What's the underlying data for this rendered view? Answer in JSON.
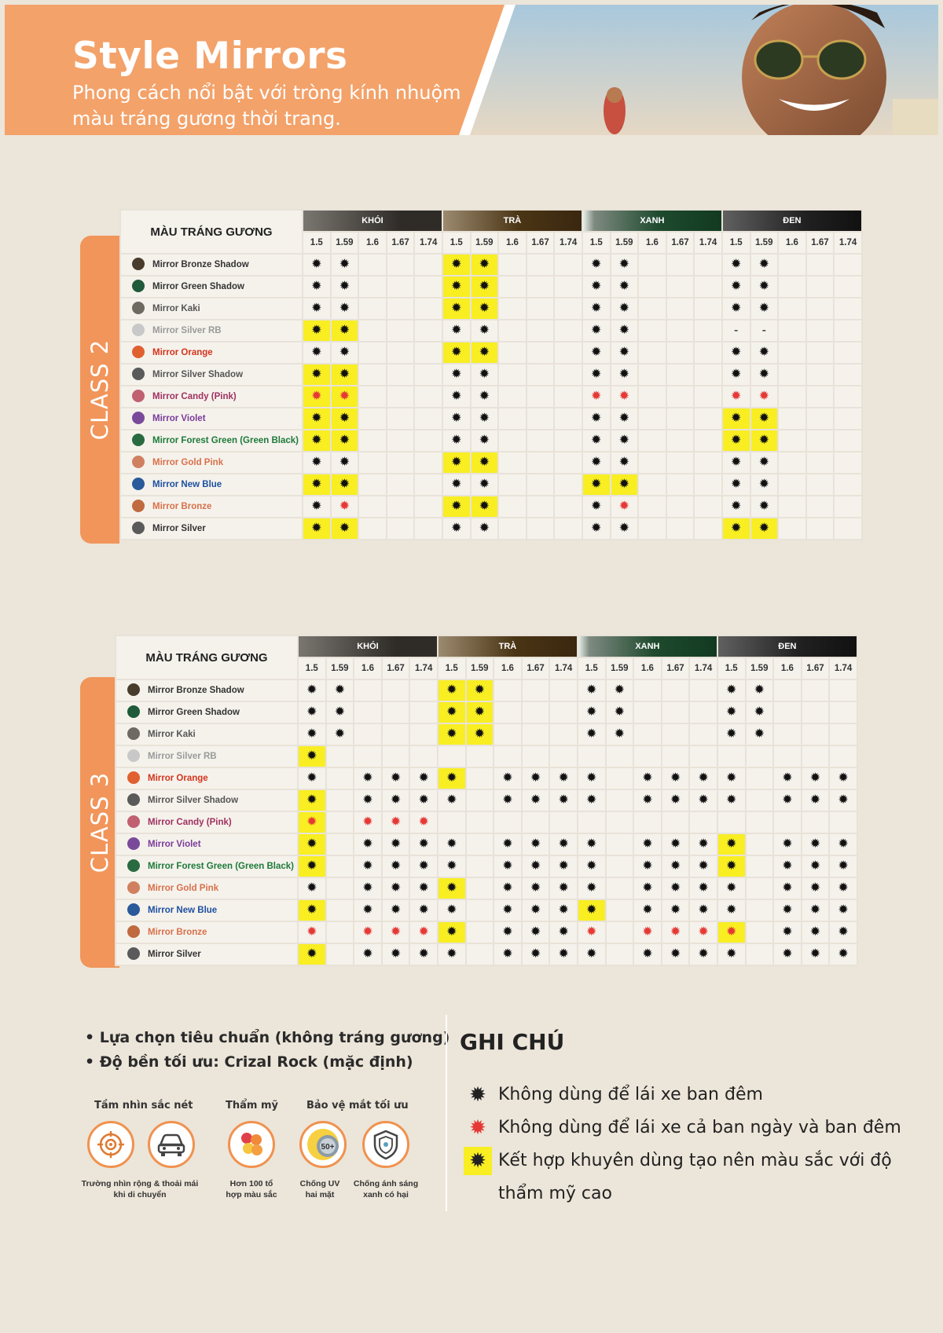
{
  "header": {
    "title": "Style Mirrors",
    "subtitle": "Phong cách nổi bật với tròng kính nhuộm màu tráng gương thời trang."
  },
  "table_header": {
    "corner": "MÀU TRÁNG GƯƠNG",
    "groups": [
      "KHÓI",
      "TRÀ",
      "XANH",
      "ĐEN"
    ],
    "indices": [
      "1.5",
      "1.59",
      "1.6",
      "1.67",
      "1.74"
    ]
  },
  "colors": {
    "orange_accent": "#f1955a",
    "highlight_yellow": "#f8ee22",
    "warning_red": "#e53935",
    "cell_bg": "#f5f2ec",
    "page_bg": "#ece5d9"
  },
  "legend_codes": {
    "s": "sun icon",
    "S": "sun icon highlighted",
    "r": "red sun icon",
    "R": "red sun icon highlighted",
    "-": "dash",
    "": "empty"
  },
  "class2": {
    "label": "CLASS 2",
    "rows": [
      {
        "name": "Mirror Bronze Shadow",
        "color": "#333333",
        "dot": "#4a3c2c",
        "cells": [
          "s",
          "s",
          "",
          "",
          "",
          "S",
          "S",
          "",
          "",
          "",
          "s",
          "s",
          "",
          "",
          "",
          "s",
          "s",
          "",
          "",
          ""
        ]
      },
      {
        "name": "Mirror Green Shadow",
        "color": "#333333",
        "dot": "#1f5a3a",
        "cells": [
          "s",
          "s",
          "",
          "",
          "",
          "S",
          "S",
          "",
          "",
          "",
          "s",
          "s",
          "",
          "",
          "",
          "s",
          "s",
          "",
          "",
          ""
        ]
      },
      {
        "name": "Mirror Kaki",
        "color": "#555555",
        "dot": "#6e6a62",
        "cells": [
          "s",
          "s",
          "",
          "",
          "",
          "S",
          "S",
          "",
          "",
          "",
          "s",
          "s",
          "",
          "",
          "",
          "s",
          "s",
          "",
          "",
          ""
        ]
      },
      {
        "name": "Mirror Silver RB",
        "color": "#9a9a9a",
        "dot": "#c8c8c8",
        "cells": [
          "S",
          "S",
          "",
          "",
          "",
          "s",
          "s",
          "",
          "",
          "",
          "s",
          "s",
          "",
          "",
          "",
          "-",
          "-",
          "",
          "",
          ""
        ]
      },
      {
        "name": "Mirror Orange",
        "color": "#d4341c",
        "dot": "#e06030",
        "cells": [
          "s",
          "s",
          "",
          "",
          "",
          "S",
          "S",
          "",
          "",
          "",
          "s",
          "s",
          "",
          "",
          "",
          "s",
          "s",
          "",
          "",
          ""
        ]
      },
      {
        "name": "Mirror Silver Shadow",
        "color": "#555555",
        "dot": "#5a5a5a",
        "cells": [
          "S",
          "S",
          "",
          "",
          "",
          "s",
          "s",
          "",
          "",
          "",
          "s",
          "s",
          "",
          "",
          "",
          "s",
          "s",
          "",
          "",
          ""
        ]
      },
      {
        "name": "Mirror Candy (Pink)",
        "color": "#a03060",
        "dot": "#c06070",
        "cells": [
          "R",
          "R",
          "",
          "",
          "",
          "s",
          "s",
          "",
          "",
          "",
          "r",
          "r",
          "",
          "",
          "",
          "r",
          "r",
          "",
          "",
          ""
        ]
      },
      {
        "name": "Mirror Violet",
        "color": "#7a3a9a",
        "dot": "#7a4a9a",
        "cells": [
          "S",
          "S",
          "",
          "",
          "",
          "s",
          "s",
          "",
          "",
          "",
          "s",
          "s",
          "",
          "",
          "",
          "S",
          "S",
          "",
          "",
          ""
        ]
      },
      {
        "name": "Mirror Forest Green (Green Black)",
        "color": "#1e7a3a",
        "dot": "#2a6a40",
        "cells": [
          "S",
          "S",
          "",
          "",
          "",
          "s",
          "s",
          "",
          "",
          "",
          "s",
          "s",
          "",
          "",
          "",
          "S",
          "S",
          "",
          "",
          ""
        ]
      },
      {
        "name": "Mirror Gold Pink",
        "color": "#d8704a",
        "dot": "#d08060",
        "cells": [
          "s",
          "s",
          "",
          "",
          "",
          "S",
          "S",
          "",
          "",
          "",
          "s",
          "s",
          "",
          "",
          "",
          "s",
          "s",
          "",
          "",
          ""
        ]
      },
      {
        "name": "Mirror New Blue",
        "color": "#1d4fa0",
        "dot": "#2a5a9a",
        "cells": [
          "S",
          "S",
          "",
          "",
          "",
          "s",
          "s",
          "",
          "",
          "",
          "S",
          "S",
          "",
          "",
          "",
          "s",
          "s",
          "",
          "",
          ""
        ]
      },
      {
        "name": "Mirror Bronze",
        "color": "#d8704a",
        "dot": "#c06a40",
        "cells": [
          "s",
          "r",
          "",
          "",
          "",
          "S",
          "S",
          "",
          "",
          "",
          "s",
          "r",
          "",
          "",
          "",
          "s",
          "s",
          "",
          "",
          ""
        ]
      },
      {
        "name": "Mirror Silver",
        "color": "#333333",
        "dot": "#5a5a5a",
        "cells": [
          "S",
          "S",
          "",
          "",
          "",
          "s",
          "s",
          "",
          "",
          "",
          "s",
          "s",
          "",
          "",
          "",
          "S",
          "S",
          "",
          "",
          ""
        ]
      }
    ]
  },
  "class3": {
    "label": "CLASS 3",
    "rows": [
      {
        "name": "Mirror Bronze Shadow",
        "color": "#333333",
        "dot": "#4a3c2c",
        "cells": [
          "s",
          "s",
          "",
          "",
          "",
          "S",
          "S",
          "",
          "",
          "",
          "s",
          "s",
          "",
          "",
          "",
          "s",
          "s",
          "",
          "",
          ""
        ]
      },
      {
        "name": "Mirror Green Shadow",
        "color": "#333333",
        "dot": "#1f5a3a",
        "cells": [
          "s",
          "s",
          "",
          "",
          "",
          "S",
          "S",
          "",
          "",
          "",
          "s",
          "s",
          "",
          "",
          "",
          "s",
          "s",
          "",
          "",
          ""
        ]
      },
      {
        "name": "Mirror Kaki",
        "color": "#555555",
        "dot": "#6e6a62",
        "cells": [
          "s",
          "s",
          "",
          "",
          "",
          "S",
          "S",
          "",
          "",
          "",
          "s",
          "s",
          "",
          "",
          "",
          "s",
          "s",
          "",
          "",
          ""
        ]
      },
      {
        "name": "Mirror Silver RB",
        "color": "#9a9a9a",
        "dot": "#c8c8c8",
        "cells": [
          "S",
          "",
          "",
          "",
          "",
          "",
          "",
          "",
          "",
          "",
          "",
          "",
          "",
          "",
          "",
          "",
          "",
          "",
          "",
          ""
        ]
      },
      {
        "name": "Mirror Orange",
        "color": "#d4341c",
        "dot": "#e06030",
        "cells": [
          "s",
          "",
          "s",
          "s",
          "s",
          "S",
          "",
          "s",
          "s",
          "s",
          "s",
          "",
          "s",
          "s",
          "s",
          "s",
          "",
          "s",
          "s",
          "s"
        ]
      },
      {
        "name": "Mirror Silver Shadow",
        "color": "#555555",
        "dot": "#5a5a5a",
        "cells": [
          "S",
          "",
          "s",
          "s",
          "s",
          "s",
          "",
          "s",
          "s",
          "s",
          "s",
          "",
          "s",
          "s",
          "s",
          "s",
          "",
          "s",
          "s",
          "s"
        ]
      },
      {
        "name": "Mirror Candy (Pink)",
        "color": "#a03060",
        "dot": "#c06070",
        "cells": [
          "R",
          "",
          "r",
          "r",
          "r",
          "",
          "",
          "",
          "",
          "",
          "",
          "",
          "",
          "",
          "",
          "",
          "",
          "",
          "",
          ""
        ]
      },
      {
        "name": "Mirror Violet",
        "color": "#7a3a9a",
        "dot": "#7a4a9a",
        "cells": [
          "S",
          "",
          "s",
          "s",
          "s",
          "s",
          "",
          "s",
          "s",
          "s",
          "s",
          "",
          "s",
          "s",
          "s",
          "S",
          "",
          "s",
          "s",
          "s"
        ]
      },
      {
        "name": "Mirror Forest Green (Green Black)",
        "color": "#1e7a3a",
        "dot": "#2a6a40",
        "cells": [
          "S",
          "",
          "s",
          "s",
          "s",
          "s",
          "",
          "s",
          "s",
          "s",
          "s",
          "",
          "s",
          "s",
          "s",
          "S",
          "",
          "s",
          "s",
          "s"
        ]
      },
      {
        "name": "Mirror Gold Pink",
        "color": "#d8704a",
        "dot": "#d08060",
        "cells": [
          "s",
          "",
          "s",
          "s",
          "s",
          "S",
          "",
          "s",
          "s",
          "s",
          "s",
          "",
          "s",
          "s",
          "s",
          "s",
          "",
          "s",
          "s",
          "s"
        ]
      },
      {
        "name": "Mirror New Blue",
        "color": "#1d4fa0",
        "dot": "#2a5a9a",
        "cells": [
          "S",
          "",
          "s",
          "s",
          "s",
          "s",
          "",
          "s",
          "s",
          "s",
          "S",
          "",
          "s",
          "s",
          "s",
          "s",
          "",
          "s",
          "s",
          "s"
        ]
      },
      {
        "name": "Mirror Bronze",
        "color": "#d8704a",
        "dot": "#c06a40",
        "cells": [
          "r",
          "",
          "r",
          "r",
          "r",
          "S",
          "",
          "s",
          "s",
          "s",
          "r",
          "",
          "r",
          "r",
          "r",
          "R",
          "",
          "s",
          "s",
          "s"
        ]
      },
      {
        "name": "Mirror Silver",
        "color": "#333333",
        "dot": "#5a5a5a",
        "cells": [
          "S",
          "",
          "s",
          "s",
          "s",
          "s",
          "",
          "s",
          "s",
          "s",
          "s",
          "",
          "s",
          "s",
          "s",
          "s",
          "",
          "s",
          "s",
          "s"
        ]
      }
    ]
  },
  "options": {
    "bullets": [
      "• Lựa chọn tiêu chuẩn (không tráng gương)",
      "• Độ bền tối ưu: Crizal Rock (mặc định)"
    ],
    "feature_heads": [
      "Tầm nhìn sắc nét",
      "Thẩm mỹ",
      "Bảo vệ mắt tối ưu"
    ],
    "features": [
      {
        "icon": "target-icon",
        "caption": ""
      },
      {
        "icon": "car-icon",
        "caption": ""
      },
      {
        "icon": "color-palette-icon",
        "caption": "Hơn 100 tổ hợp màu sắc"
      },
      {
        "icon": "uv-shield-icon",
        "caption": "Chống UV hai mặt",
        "badge": "50+"
      },
      {
        "icon": "shield-icon",
        "caption": "Chống ánh sáng xanh có hại"
      }
    ],
    "wide_caption": "Trường nhìn rộng & thoải mái khi di chuyển"
  },
  "notes": {
    "title": "GHI CHÚ",
    "items": [
      {
        "type": "black",
        "text": "Không dùng để lái xe ban đêm"
      },
      {
        "type": "red",
        "text": "Không dùng để lái xe cả ban ngày và ban đêm"
      },
      {
        "type": "highlight",
        "text": "Kết hợp khuyên dùng tạo nên màu sắc với độ thẩm mỹ cao"
      }
    ]
  }
}
